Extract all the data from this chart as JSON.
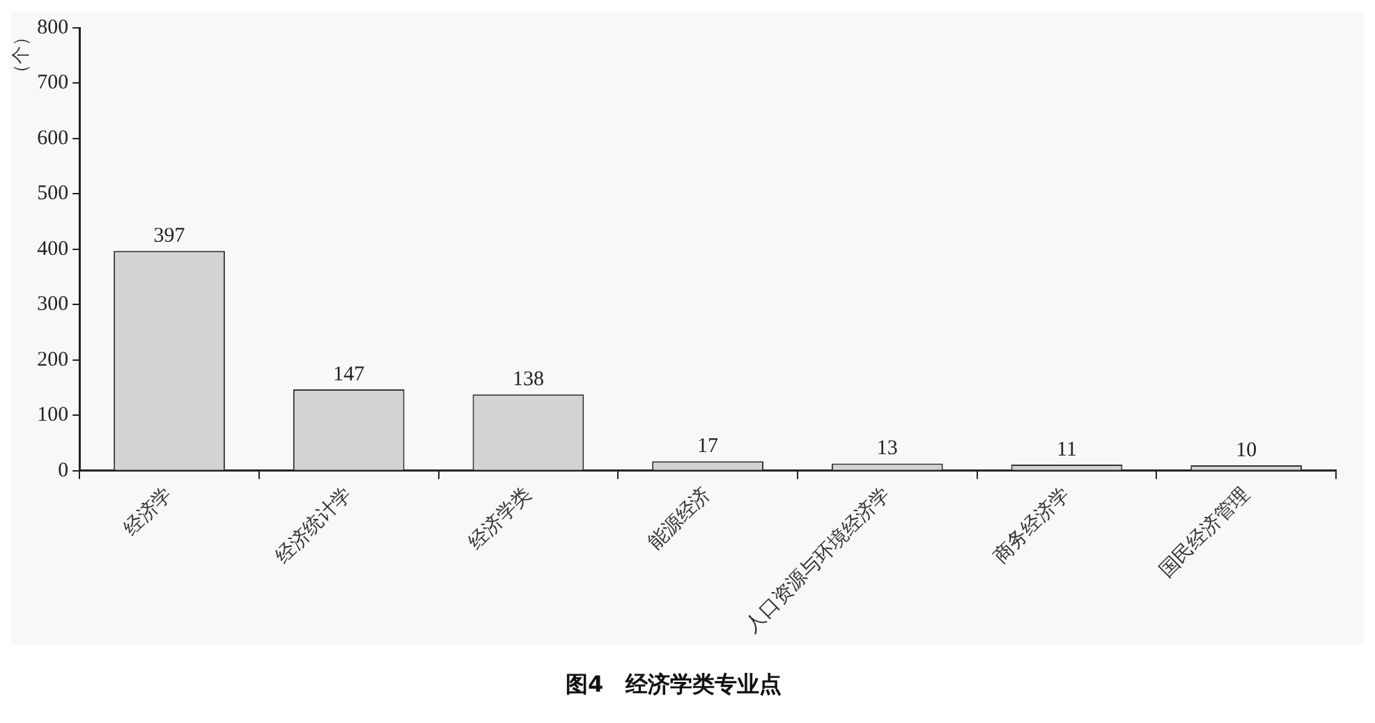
{
  "chart_data": {
    "type": "bar",
    "title": "图4　经济学类专业点",
    "ylabel": "（个）",
    "categories": [
      "经济学",
      "经济统计学",
      "经济学类",
      "能源经济",
      "人口资源与环境经济学",
      "商务经济学",
      "国民经济管理"
    ],
    "values": [
      397,
      147,
      138,
      17,
      13,
      11,
      10
    ],
    "color": "#d3d3d3",
    "ylim": [
      0,
      800
    ],
    "yticks": [
      0,
      100,
      200,
      300,
      400,
      500,
      600,
      700,
      800
    ],
    "grid": false,
    "legend": false,
    "data_labels": true
  }
}
